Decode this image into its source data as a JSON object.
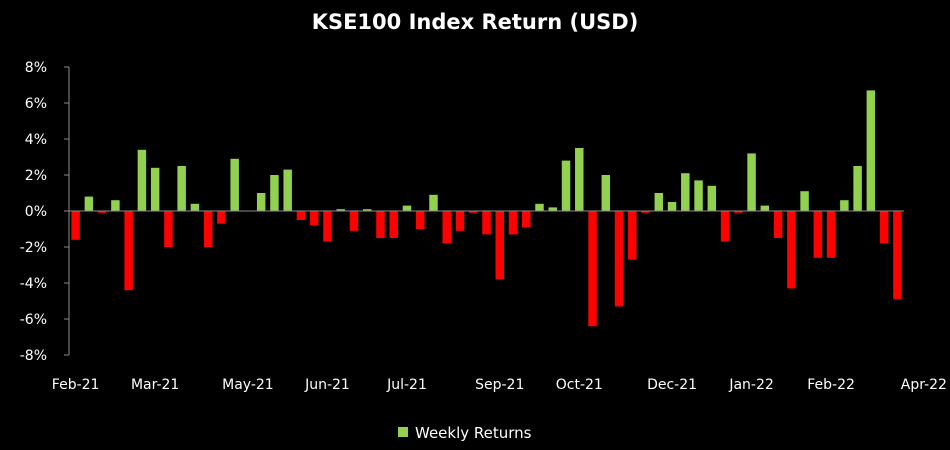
{
  "colors": {
    "background": "#000000",
    "positive": "#92d050",
    "negative": "#ff0000",
    "axis": "#8c8c8c",
    "text": "#ffffff"
  },
  "chart_data": {
    "type": "bar",
    "title": "KSE100 Index Return (USD)",
    "xlabel": "",
    "ylabel": "",
    "ylim": [
      -8,
      8
    ],
    "y_ticks": [
      "8%",
      "6%",
      "4%",
      "2%",
      "0%",
      "-2%",
      "-4%",
      "-6%",
      "-8%"
    ],
    "y_tick_values": [
      8,
      6,
      4,
      2,
      0,
      -2,
      -4,
      -6,
      -8
    ],
    "x_tick_labels": [
      "Feb-21",
      "Mar-21",
      "May-21",
      "Jun-21",
      "Jul-21",
      "Sep-21",
      "Oct-21",
      "Dec-21",
      "Jan-22",
      "Feb-22",
      "Apr-22"
    ],
    "x_tick_positions": [
      0,
      6,
      13,
      19,
      25,
      32,
      38,
      45,
      51,
      57,
      64
    ],
    "grid": false,
    "legend": {
      "position": "bottom",
      "entries": [
        "Weekly Returns"
      ]
    },
    "series": [
      {
        "name": "Weekly Returns",
        "values": [
          -1.6,
          0.8,
          -0.1,
          0.6,
          -4.4,
          3.4,
          2.4,
          -2.0,
          2.5,
          0.4,
          -2.0,
          -0.7,
          2.9,
          0,
          1.0,
          2.0,
          2.3,
          -0.5,
          -0.8,
          -1.7,
          0.1,
          -1.1,
          0.1,
          -1.5,
          -1.5,
          0.3,
          -1.0,
          0.9,
          -1.8,
          -1.1,
          -0.1,
          -1.3,
          -3.8,
          -1.3,
          -0.9,
          0.4,
          0.2,
          2.8,
          3.5,
          -6.4,
          2.0,
          -5.3,
          -2.7,
          -0.1,
          1.0,
          0.5,
          2.1,
          1.7,
          1.4,
          -1.7,
          -0.1,
          3.2,
          0.3,
          -1.5,
          -4.3,
          1.1,
          -2.6,
          -2.6,
          0.6,
          2.5,
          6.7,
          -1.8,
          -4.9
        ]
      }
    ]
  }
}
